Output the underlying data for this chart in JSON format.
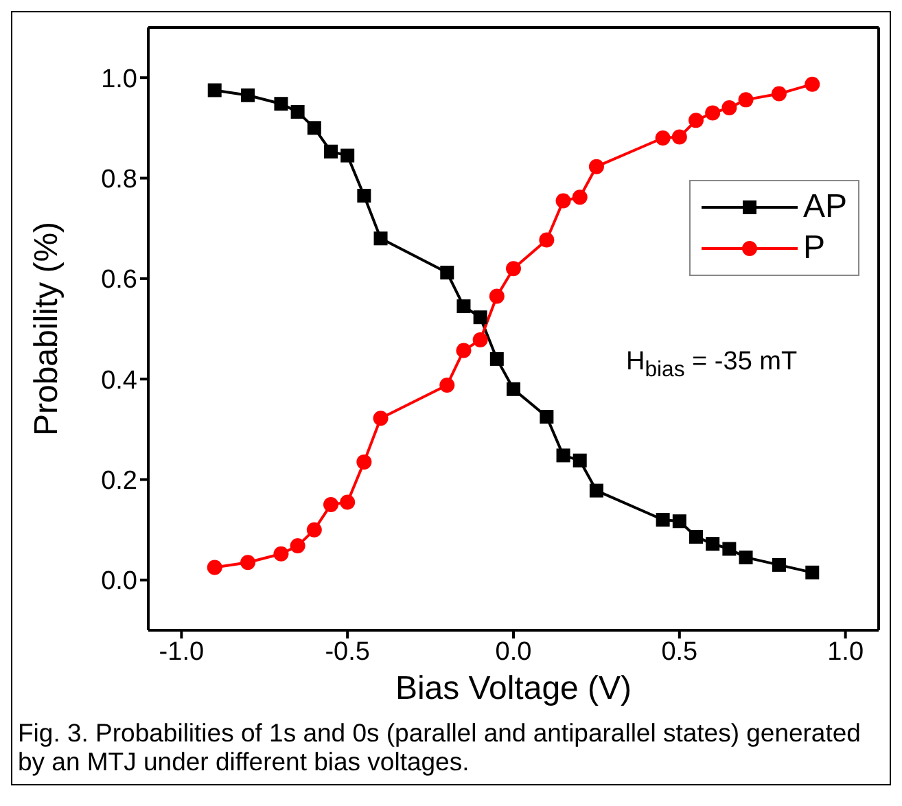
{
  "chart_data": {
    "type": "line",
    "xlabel": "Bias Voltage (V)",
    "ylabel": "Probability (%)",
    "x": [
      -0.9,
      -0.8,
      -0.7,
      -0.65,
      -0.6,
      -0.55,
      -0.5,
      -0.45,
      -0.4,
      -0.2,
      -0.15,
      -0.1,
      -0.05,
      0,
      0.1,
      0.15,
      0.2,
      0.25,
      0.45,
      0.5,
      0.55,
      0.6,
      0.65,
      0.7,
      0.8,
      0.9
    ],
    "series": [
      {
        "name": "AP",
        "color": "#000000",
        "marker": "square",
        "values": [
          0.975,
          0.965,
          0.948,
          0.932,
          0.9,
          0.853,
          0.845,
          0.765,
          0.68,
          0.612,
          0.545,
          0.523,
          0.44,
          0.38,
          0.325,
          0.248,
          0.238,
          0.178,
          0.12,
          0.117,
          0.086,
          0.072,
          0.062,
          0.045,
          0.03,
          0.015
        ]
      },
      {
        "name": "P",
        "color": "#ff0000",
        "marker": "circle",
        "values": [
          0.025,
          0.035,
          0.052,
          0.068,
          0.1,
          0.15,
          0.155,
          0.235,
          0.322,
          0.388,
          0.457,
          0.478,
          0.565,
          0.62,
          0.677,
          0.755,
          0.762,
          0.823,
          0.88,
          0.882,
          0.915,
          0.93,
          0.94,
          0.956,
          0.968,
          0.987
        ]
      }
    ],
    "xlim": [
      -1.1,
      1.1
    ],
    "xticks": [
      {
        "value": -1,
        "label": "-1.0"
      },
      {
        "value": -0.5,
        "label": "-0.5"
      },
      {
        "value": 0,
        "label": "0.0"
      },
      {
        "value": 0.5,
        "label": "0.5"
      },
      {
        "value": 1,
        "label": "1.0"
      }
    ],
    "ylim": [
      -0.1,
      1.1
    ],
    "yticks": [
      {
        "value": 0,
        "label": "0.0"
      },
      {
        "value": 0.2,
        "label": "0.2"
      },
      {
        "value": 0.4,
        "label": "0.4"
      },
      {
        "value": 0.6,
        "label": "0.6"
      },
      {
        "value": 0.8,
        "label": "0.8"
      },
      {
        "value": 1,
        "label": "1.0"
      }
    ],
    "grid": false,
    "legend": "top right",
    "line_style": "solid",
    "annotations": [
      "H$_{bias}$ = -35 mT",
      "Fig. 3. Probabilities of 1s and 0s (parallel and antiparallel states) generated by an MTJ under different bias voltages."
    ]
  }
}
